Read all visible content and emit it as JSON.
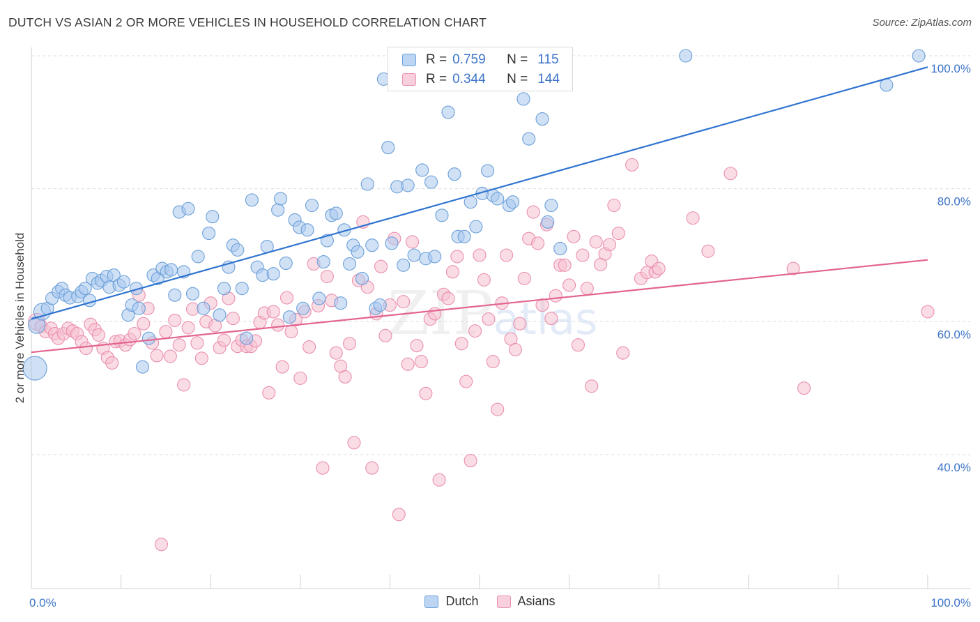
{
  "title": "DUTCH VS ASIAN 2 OR MORE VEHICLES IN HOUSEHOLD CORRELATION CHART",
  "source": "Source: ZipAtlas.com",
  "watermark": {
    "main": "ZIP",
    "sub": "atlas"
  },
  "legend": {
    "dutch": {
      "r_label": "R =",
      "r_value": "0.759",
      "n_label": "N =",
      "n_value": "115"
    },
    "asians": {
      "r_label": "R =",
      "r_value": "0.344",
      "n_label": "N =",
      "n_value": "144"
    }
  },
  "bottom_legend": {
    "dutch": "Dutch",
    "asians": "Asians"
  },
  "colors": {
    "dutch_fill": "#a9c8ee",
    "dutch_stroke": "#6a9fd8",
    "dutch_line": "#2f74d0",
    "asians_fill": "#f6bfd0",
    "asians_stroke": "#ea8fae",
    "asians_line": "#e2648f",
    "grid": "#dcdcdc",
    "tick_label": "#3d74c8"
  },
  "chart_data": {
    "type": "scatter",
    "title": "DUTCH VS ASIAN 2 OR MORE VEHICLES IN HOUSEHOLD CORRELATION CHART",
    "xlabel": "",
    "ylabel": "2 or more Vehicles in Household",
    "xlim": [
      0,
      100
    ],
    "ylim": [
      18,
      102
    ],
    "x_tick_labels": [
      "0.0%",
      "100.0%"
    ],
    "y_ticks": [
      40,
      60,
      80,
      100
    ],
    "y_tick_labels": [
      "40.0%",
      "60.0%",
      "80.0%",
      "100.0%"
    ],
    "grid": true,
    "legend_position": "top-center",
    "series": [
      {
        "name": "Dutch",
        "R": 0.759,
        "N": 115,
        "trend": {
          "x": [
            0,
            100
          ],
          "y": [
            60.4,
            98.3
          ]
        },
        "points": [
          [
            0.4,
            53
          ],
          [
            0.6,
            59.5
          ],
          [
            1.2,
            61.5
          ],
          [
            1.8,
            62
          ],
          [
            2.3,
            63.5
          ],
          [
            3.0,
            64.5
          ],
          [
            3.4,
            65
          ],
          [
            3.8,
            64
          ],
          [
            4.3,
            63.6
          ],
          [
            5.2,
            63.8
          ],
          [
            5.6,
            64.5
          ],
          [
            6.0,
            65
          ],
          [
            6.5,
            63.2
          ],
          [
            6.8,
            66.5
          ],
          [
            7.4,
            65.8
          ],
          [
            7.8,
            66.2
          ],
          [
            8.4,
            66.8
          ],
          [
            8.7,
            65.2
          ],
          [
            9.2,
            67
          ],
          [
            9.8,
            65.5
          ],
          [
            10.3,
            66
          ],
          [
            10.8,
            61
          ],
          [
            11.2,
            62.5
          ],
          [
            11.7,
            65
          ],
          [
            12.0,
            62
          ],
          [
            12.4,
            53.2
          ],
          [
            13.1,
            57.5
          ],
          [
            13.6,
            67
          ],
          [
            14.1,
            66.5
          ],
          [
            14.6,
            68
          ],
          [
            15.1,
            67.5
          ],
          [
            15.6,
            67.8
          ],
          [
            16.0,
            64
          ],
          [
            16.5,
            76.5
          ],
          [
            17.0,
            67.5
          ],
          [
            17.5,
            77
          ],
          [
            18.0,
            64.2
          ],
          [
            18.6,
            69.8
          ],
          [
            19.2,
            62
          ],
          [
            19.8,
            73.3
          ],
          [
            20.2,
            75.8
          ],
          [
            21.0,
            61
          ],
          [
            21.5,
            65
          ],
          [
            22.0,
            68.2
          ],
          [
            22.5,
            71.5
          ],
          [
            23.0,
            70.8
          ],
          [
            23.5,
            65
          ],
          [
            24.0,
            57.5
          ],
          [
            24.6,
            78.3
          ],
          [
            25.2,
            68.2
          ],
          [
            25.8,
            67
          ],
          [
            26.3,
            71.3
          ],
          [
            27.0,
            67.2
          ],
          [
            27.5,
            76.8
          ],
          [
            27.8,
            78.5
          ],
          [
            28.4,
            68.8
          ],
          [
            28.8,
            60.7
          ],
          [
            29.4,
            75.3
          ],
          [
            29.9,
            74.2
          ],
          [
            30.3,
            62
          ],
          [
            30.8,
            73.8
          ],
          [
            31.3,
            77.5
          ],
          [
            32.1,
            63.5
          ],
          [
            32.6,
            69
          ],
          [
            33.0,
            72.2
          ],
          [
            33.5,
            76
          ],
          [
            34.0,
            76.3
          ],
          [
            34.5,
            62.8
          ],
          [
            34.9,
            73.8
          ],
          [
            35.5,
            68.7
          ],
          [
            35.9,
            71.5
          ],
          [
            36.4,
            70.5
          ],
          [
            36.9,
            66.5
          ],
          [
            37.5,
            80.7
          ],
          [
            38.0,
            71.5
          ],
          [
            38.4,
            62
          ],
          [
            38.9,
            62.5
          ],
          [
            39.3,
            96.5
          ],
          [
            39.8,
            86.2
          ],
          [
            40.2,
            71.8
          ],
          [
            40.8,
            80.3
          ],
          [
            41.5,
            68.5
          ],
          [
            42.0,
            80.5
          ],
          [
            42.7,
            70
          ],
          [
            43.6,
            82.8
          ],
          [
            44.0,
            69.5
          ],
          [
            44.6,
            81
          ],
          [
            45.0,
            69.8
          ],
          [
            45.8,
            76
          ],
          [
            46.5,
            91.5
          ],
          [
            47.2,
            82.2
          ],
          [
            47.6,
            72.8
          ],
          [
            48.3,
            72.8
          ],
          [
            49.0,
            78
          ],
          [
            49.6,
            74.3
          ],
          [
            50.3,
            79.3
          ],
          [
            50.9,
            82.7
          ],
          [
            51.5,
            79
          ],
          [
            52.0,
            78.5
          ],
          [
            52.8,
            100
          ],
          [
            53.3,
            77.5
          ],
          [
            53.7,
            78
          ],
          [
            54.9,
            93.5
          ],
          [
            55.5,
            87.5
          ],
          [
            57.0,
            90.5
          ],
          [
            57.6,
            75
          ],
          [
            58.0,
            77.5
          ],
          [
            59.0,
            71
          ],
          [
            73.0,
            100
          ],
          [
            99.0,
            100
          ],
          [
            95.4,
            95.6
          ]
        ]
      },
      {
        "name": "Asians",
        "R": 0.344,
        "N": 144,
        "trend": {
          "x": [
            0,
            100
          ],
          "y": [
            55.4,
            69.3
          ]
        },
        "points": [
          [
            0.6,
            60
          ],
          [
            1.1,
            59.3
          ],
          [
            1.6,
            58.5
          ],
          [
            2.2,
            59
          ],
          [
            2.6,
            58.2
          ],
          [
            3.0,
            57.5
          ],
          [
            3.6,
            58.2
          ],
          [
            4.1,
            59
          ],
          [
            4.6,
            58.6
          ],
          [
            5.1,
            58.2
          ],
          [
            5.6,
            57
          ],
          [
            6.1,
            56
          ],
          [
            6.6,
            59.6
          ],
          [
            7.1,
            58.8
          ],
          [
            7.5,
            58
          ],
          [
            8.0,
            56
          ],
          [
            8.5,
            54.6
          ],
          [
            9.0,
            53.8
          ],
          [
            9.4,
            57
          ],
          [
            9.9,
            57.1
          ],
          [
            10.5,
            56.5
          ],
          [
            11.0,
            57.3
          ],
          [
            11.5,
            58.2
          ],
          [
            12.0,
            64
          ],
          [
            12.5,
            59.7
          ],
          [
            13.0,
            62
          ],
          [
            13.5,
            56.8
          ],
          [
            14.0,
            54.9
          ],
          [
            14.5,
            26.5
          ],
          [
            15.0,
            58.5
          ],
          [
            15.5,
            54.8
          ],
          [
            16.0,
            60.2
          ],
          [
            16.5,
            56.5
          ],
          [
            17.0,
            50.5
          ],
          [
            17.5,
            59.1
          ],
          [
            18.0,
            61.9
          ],
          [
            18.5,
            56.8
          ],
          [
            19.0,
            54.5
          ],
          [
            19.5,
            60
          ],
          [
            20.0,
            62.8
          ],
          [
            20.5,
            59.4
          ],
          [
            21.0,
            56.1
          ],
          [
            21.5,
            57.2
          ],
          [
            22.0,
            63.5
          ],
          [
            22.5,
            60.5
          ],
          [
            23.0,
            56.3
          ],
          [
            23.5,
            57.2
          ],
          [
            24.0,
            56.3
          ],
          [
            24.5,
            56.3
          ],
          [
            25.0,
            57.1
          ],
          [
            25.5,
            59.9
          ],
          [
            26.0,
            61.3
          ],
          [
            26.5,
            49.3
          ],
          [
            27.0,
            61.5
          ],
          [
            27.5,
            59.5
          ],
          [
            28.0,
            53.2
          ],
          [
            28.5,
            63.6
          ],
          [
            29.0,
            58.5
          ],
          [
            29.5,
            60.3
          ],
          [
            30.0,
            51.5
          ],
          [
            30.5,
            61.5
          ],
          [
            31.0,
            56.2
          ],
          [
            31.5,
            68.7
          ],
          [
            32.0,
            62.4
          ],
          [
            32.5,
            38
          ],
          [
            33.0,
            66.8
          ],
          [
            33.5,
            63.2
          ],
          [
            34.0,
            55.3
          ],
          [
            34.5,
            53.3
          ],
          [
            35.0,
            51.7
          ],
          [
            35.5,
            56.7
          ],
          [
            36.0,
            41.8
          ],
          [
            36.5,
            66.2
          ],
          [
            37.0,
            75
          ],
          [
            37.5,
            65.2
          ],
          [
            38.0,
            38
          ],
          [
            38.5,
            61.2
          ],
          [
            39.0,
            68.3
          ],
          [
            39.5,
            57.9
          ],
          [
            40.0,
            62.5
          ],
          [
            40.5,
            72.5
          ],
          [
            41.0,
            31
          ],
          [
            41.5,
            63
          ],
          [
            42.0,
            53.6
          ],
          [
            42.5,
            72
          ],
          [
            43.0,
            56.4
          ],
          [
            43.5,
            54
          ],
          [
            44.0,
            49.2
          ],
          [
            44.5,
            60.4
          ],
          [
            45.0,
            61.2
          ],
          [
            45.5,
            36.2
          ],
          [
            46.0,
            64.1
          ],
          [
            46.5,
            63.5
          ],
          [
            47.0,
            67.5
          ],
          [
            47.5,
            69.8
          ],
          [
            48.0,
            56.7
          ],
          [
            48.5,
            51
          ],
          [
            49.0,
            39.1
          ],
          [
            49.5,
            58.6
          ],
          [
            50.0,
            70
          ],
          [
            50.5,
            66.3
          ],
          [
            51.0,
            60.4
          ],
          [
            51.5,
            54
          ],
          [
            52.0,
            46.8
          ],
          [
            52.5,
            62.8
          ],
          [
            53.0,
            70
          ],
          [
            53.5,
            57.4
          ],
          [
            54.0,
            55.8
          ],
          [
            54.5,
            59.7
          ],
          [
            55.0,
            66.5
          ],
          [
            55.5,
            72.5
          ],
          [
            56.0,
            76.5
          ],
          [
            56.5,
            71.8
          ],
          [
            57.0,
            62.5
          ],
          [
            57.5,
            74.6
          ],
          [
            58.0,
            60.5
          ],
          [
            58.5,
            63.9
          ],
          [
            59.0,
            68.5
          ],
          [
            59.5,
            68.5
          ],
          [
            60.0,
            65.5
          ],
          [
            60.5,
            72.8
          ],
          [
            61.0,
            56.5
          ],
          [
            61.5,
            70
          ],
          [
            62.0,
            65
          ],
          [
            62.5,
            50.3
          ],
          [
            63.0,
            72
          ],
          [
            63.5,
            68.6
          ],
          [
            64.0,
            70.2
          ],
          [
            64.5,
            71.6
          ],
          [
            65.0,
            77.5
          ],
          [
            65.5,
            73.3
          ],
          [
            66.0,
            55.3
          ],
          [
            67.0,
            83.6
          ],
          [
            68.0,
            66.5
          ],
          [
            68.7,
            67.4
          ],
          [
            69.2,
            69.1
          ],
          [
            69.6,
            67.5
          ],
          [
            70.0,
            68
          ],
          [
            73.8,
            75.6
          ],
          [
            75.5,
            70.6
          ],
          [
            78.0,
            82.3
          ],
          [
            85.0,
            68
          ],
          [
            86.2,
            50
          ],
          [
            100.0,
            61.5
          ]
        ]
      }
    ]
  }
}
